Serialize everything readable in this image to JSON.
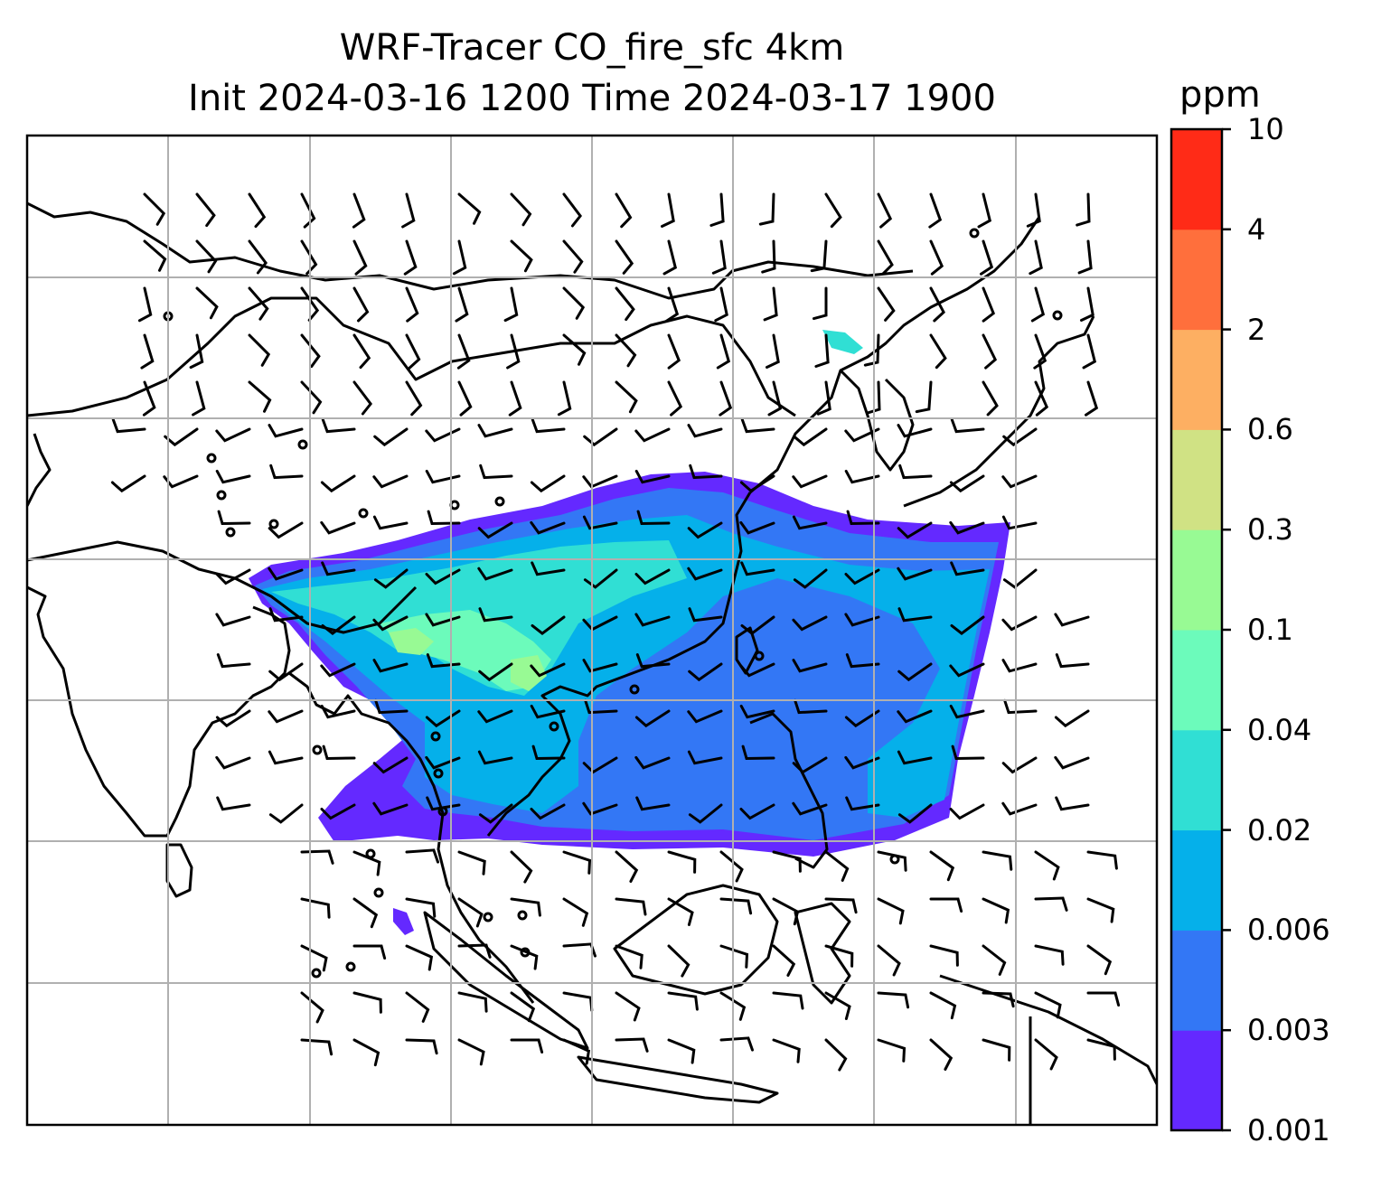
{
  "title_line1": "WRF-Tracer CO_fire_sfc 4km",
  "title_line2": "Init 2024-03-16 1200 Time 2024-03-17 1900",
  "colorbar": {
    "unit": "ppm",
    "ticks": [
      "0.001",
      "0.003",
      "0.006",
      "0.02",
      "0.04",
      "0.1",
      "0.3",
      "0.6",
      "2",
      "4",
      "10"
    ],
    "colors": [
      "#6429ff",
      "#3377f5",
      "#05b0ea",
      "#30dfd4",
      "#6cfbbb",
      "#98fa94",
      "#d0e284",
      "#fdaf62",
      "#ff6f3c",
      "#ff2b17"
    ]
  },
  "map": {
    "variable": "CO_fire_sfc",
    "overlay": "wind-barbs",
    "graticule": true
  }
}
